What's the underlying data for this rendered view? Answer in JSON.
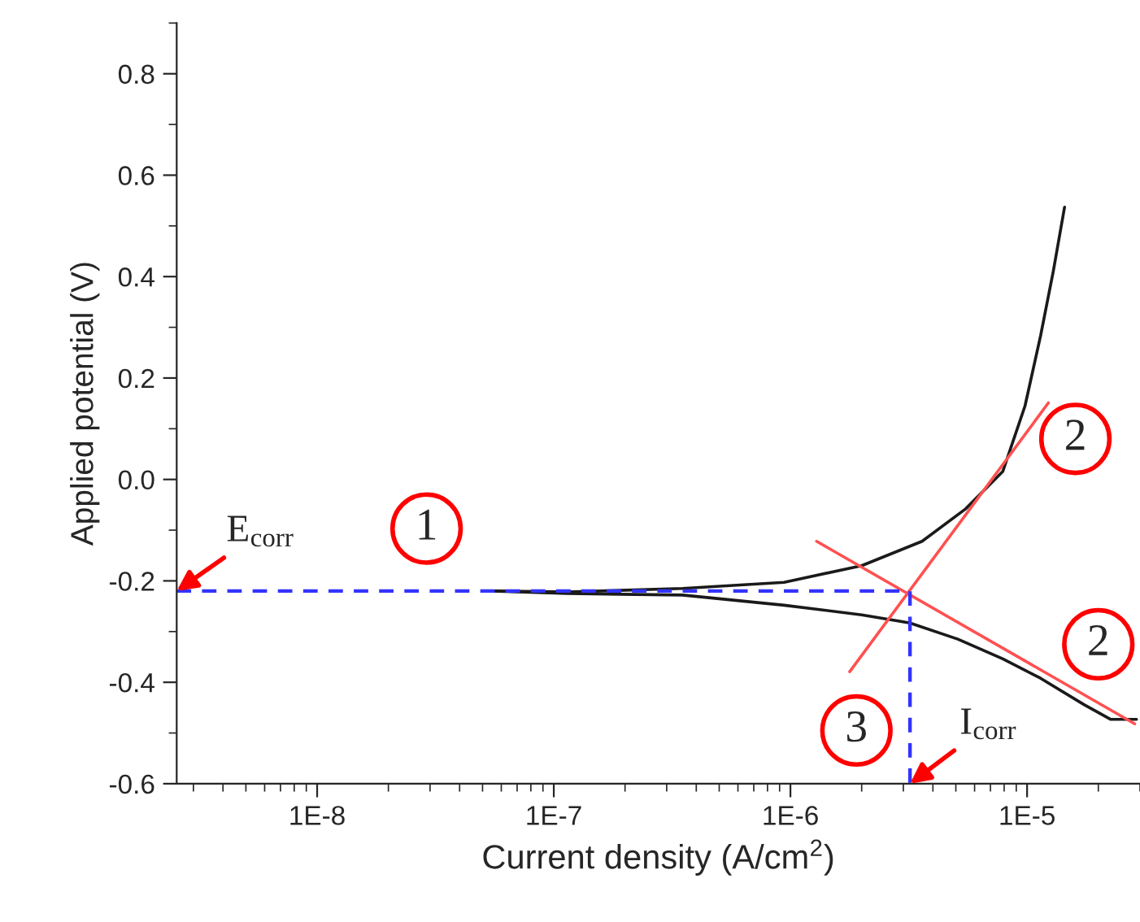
{
  "chart_data": {
    "type": "line",
    "xlabel": "Current density (A/cm$^{2}$)",
    "ylabel": "Applied potential (V)",
    "log": "x",
    "xlim": [
      2.55e-09,
      3e-05
    ],
    "ylim": [
      -0.6,
      0.9
    ],
    "xticks": [
      {
        "value": 1e-08,
        "label": "1E-8"
      },
      {
        "value": 1e-07,
        "label": "1E-7"
      },
      {
        "value": 1e-06,
        "label": "1E-6"
      },
      {
        "value": 1e-05,
        "label": "1E-5"
      }
    ],
    "yticks": [
      -0.6,
      -0.4,
      -0.2,
      {
        "value": 0,
        "label": "0.0"
      },
      0.2,
      0.4,
      0.6,
      0.8
    ],
    "grid": false,
    "marker": "none",
    "series": [
      {
        "color": "#1a1a1a",
        "x": [
          5.5e-08,
          1.14e-07,
          3.5e-07,
          9.4e-07,
          2e-06,
          3.6e-06,
          5.5e-06,
          7.9e-06,
          9.8e-06,
          1.14e-05,
          1.29e-05,
          1.44e-05
        ],
        "values": [
          -0.22,
          -0.222,
          -0.215,
          -0.203,
          -0.17,
          -0.122,
          -0.058,
          0.016,
          0.145,
          0.283,
          0.41,
          0.537
        ]
      },
      {
        "color": "#1a1a1a",
        "x": [
          5.5e-08,
          1.14e-07,
          3.5e-07,
          9.4e-07,
          2e-06,
          3.2e-06,
          5.1e-06,
          7.9e-06,
          1.14e-05,
          1.74e-05,
          2.25e-05,
          2.9e-05
        ],
        "values": [
          -0.22,
          -0.225,
          -0.228,
          -0.248,
          -0.267,
          -0.283,
          -0.315,
          -0.354,
          -0.392,
          -0.444,
          -0.473,
          -0.473
        ]
      },
      {
        "color": "#ff5050",
        "x": [
          1.78e-06,
          1.23e-05
        ],
        "values": [
          -0.379,
          0.151
        ]
      },
      {
        "color": "#ff5050",
        "x": [
          1.29e-06,
          2.85e-05
        ],
        "values": [
          -0.122,
          -0.482
        ]
      },
      {
        "color": "#3333ff",
        "line_style": "dashed",
        "x": [
          2.55e-09,
          3.2e-06,
          3.2e-06
        ],
        "values": [
          -0.22,
          -0.22,
          -0.6
        ]
      }
    ],
    "annotations": [
      {
        "text": "E$_{corr}$",
        "x": 2.55e-09,
        "y": -0.22
      },
      {
        "text": "I$_{corr}$",
        "x": 3.2e-06,
        "y": -0.6
      },
      {
        "text": "1",
        "x": 2.9e-08,
        "y": -0.097
      },
      {
        "text": "2",
        "x": 1.6e-05,
        "y": 0.08
      },
      {
        "text": "2",
        "x": 2e-05,
        "y": -0.325
      },
      {
        "text": "3",
        "x": 1.9e-06,
        "y": -0.495
      }
    ]
  }
}
